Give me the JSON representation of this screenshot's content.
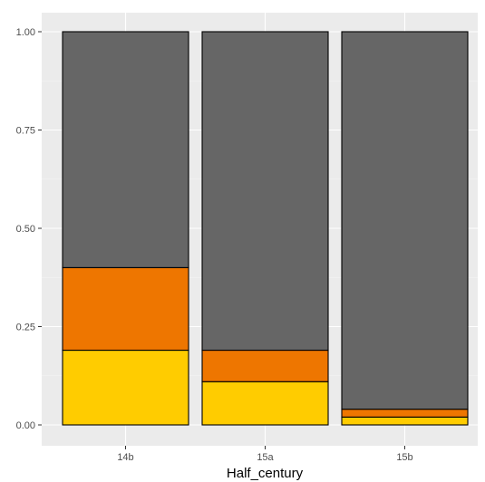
{
  "chart_data": {
    "type": "bar",
    "stacked": true,
    "title": "",
    "xlabel": "Half_century",
    "ylabel": "",
    "ylim": [
      0,
      1
    ],
    "categories": [
      "14b",
      "15a",
      "15b"
    ],
    "y_ticks": [
      0,
      0.25,
      0.5,
      0.75,
      1
    ],
    "y_tick_labels": [
      "0.00",
      "0.25",
      "0.50",
      "0.75",
      "1.00"
    ],
    "grid": true,
    "legend": "none",
    "series": [
      {
        "color": "#ffcc00",
        "values": [
          0.19,
          0.11,
          0.02
        ]
      },
      {
        "color": "#ee7600",
        "values": [
          0.21,
          0.08,
          0.02
        ]
      },
      {
        "color": "#666666",
        "values": [
          0.6,
          0.81,
          0.96
        ]
      }
    ]
  },
  "colors": {
    "panel_background": "#ebebeb",
    "grid_major": "#ffffff",
    "grid_minor": "#f5f5f5",
    "bar_outline": "#000000"
  }
}
